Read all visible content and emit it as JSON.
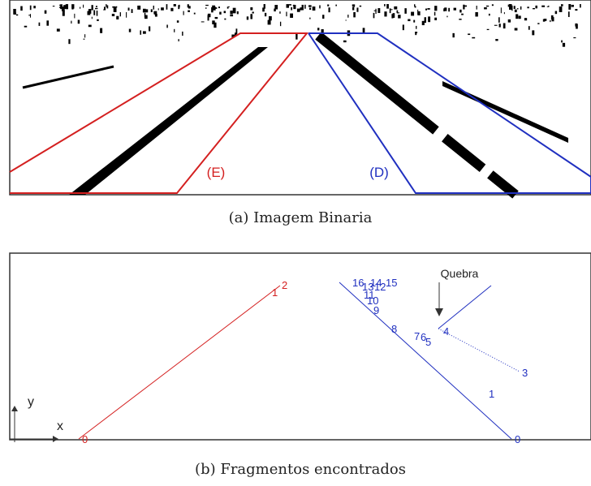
{
  "panel_a": {
    "left_label": "(E)",
    "right_label": "(D)",
    "caption": "(a) Imagem Binaria"
  },
  "panel_b": {
    "annotation": "Quebra",
    "x_axis": "x",
    "y_axis": "y",
    "left_points": [
      "0",
      "1",
      "2"
    ],
    "right_points": [
      "16",
      "13",
      "14",
      "15",
      "12",
      "11",
      "10",
      "9",
      "8",
      "7",
      "6",
      "5",
      "4",
      "3",
      "1",
      "0"
    ],
    "caption": "(b) Fragmentos encontrados"
  }
}
